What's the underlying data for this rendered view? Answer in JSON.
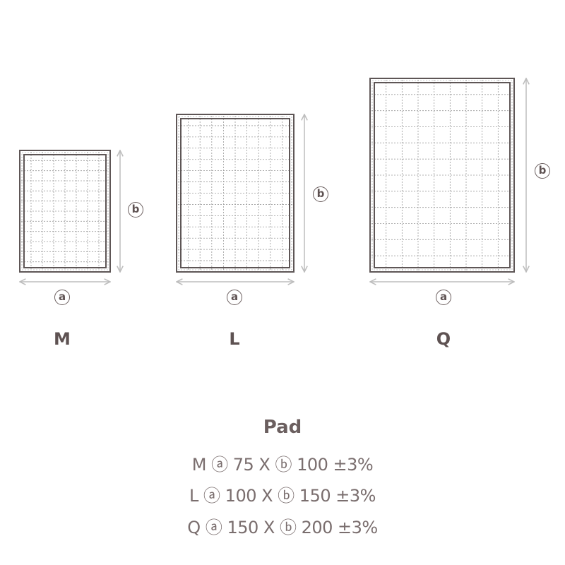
{
  "colors": {
    "line": "#5e5656",
    "grid": "#9a9a9a",
    "arrow": "#bdbdbd",
    "text": "#6b5f5f"
  },
  "dimension_labels": {
    "a": "a",
    "b": "b"
  },
  "pads": [
    {
      "size": "M",
      "width_a": 75,
      "height_b": 100
    },
    {
      "size": "L",
      "width_a": 100,
      "height_b": 150
    },
    {
      "size": "Q",
      "width_a": 150,
      "height_b": 200
    }
  ],
  "spec": {
    "title": "Pad",
    "lines": [
      {
        "text": "M ⓐ 75 X ⓑ 100 ±3%"
      },
      {
        "text": "L ⓐ 100 X ⓑ 150 ±3%"
      },
      {
        "text": "Q ⓐ 150 X ⓑ 200 ±3%"
      }
    ]
  }
}
